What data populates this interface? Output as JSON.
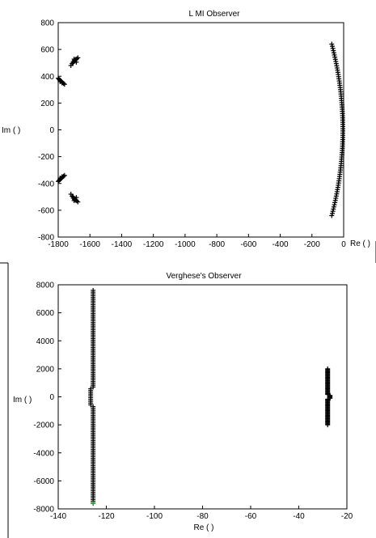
{
  "chart_data": [
    {
      "type": "scatter",
      "title": "L MI Observer",
      "xlabel": "Re ( )",
      "ylabel": "Im ( )",
      "xlim": [
        -1800,
        0
      ],
      "ylim": [
        -800,
        800
      ],
      "xticks": [
        -1800,
        -1600,
        -1400,
        -1200,
        -1000,
        -800,
        -600,
        -400,
        -200,
        0
      ],
      "yticks": [
        -800,
        -600,
        -400,
        -200,
        0,
        200,
        400,
        600,
        800
      ],
      "grid": false,
      "marker": "+",
      "clusters": [
        {
          "x": [
            -1720,
            -1712,
            -1705,
            -1698,
            -1690,
            -1683,
            -1676,
            -1706,
            -1694,
            -1686,
            -1700
          ],
          "y": [
            480,
            495,
            510,
            518,
            525,
            530,
            538,
            500,
            520,
            505,
            528
          ]
        },
        {
          "x": [
            -1800,
            -1795,
            -1790,
            -1784,
            -1778,
            -1772,
            -1766,
            -1760,
            -1788,
            -1776
          ],
          "y": [
            385,
            378,
            372,
            366,
            360,
            352,
            346,
            340,
            360,
            350
          ]
        },
        {
          "x": [
            -1800,
            -1795,
            -1790,
            -1784,
            -1778,
            -1772,
            -1766,
            -1760,
            -1788,
            -1776
          ],
          "y": [
            -385,
            -378,
            -372,
            -366,
            -360,
            -352,
            -346,
            -340,
            -360,
            -350
          ]
        },
        {
          "x": [
            -1720,
            -1712,
            -1705,
            -1698,
            -1690,
            -1683,
            -1676,
            -1706,
            -1694,
            -1686,
            -1700
          ],
          "y": [
            -480,
            -495,
            -510,
            -518,
            -525,
            -530,
            -538,
            -500,
            -520,
            -505,
            -528
          ]
        }
      ],
      "arc": {
        "x_center": -5,
        "x_end": -75,
        "y_extent": 640,
        "points": 80
      }
    },
    {
      "type": "scatter",
      "title": "Verghese's Observer",
      "xlabel": "Re ( )",
      "ylabel": "Im ( )",
      "xlim": [
        -140,
        -20
      ],
      "ylim": [
        -8000,
        8000
      ],
      "xticks": [
        -140,
        -120,
        -100,
        -80,
        -60,
        -40,
        -20
      ],
      "yticks": [
        -8000,
        -6000,
        -4000,
        -2000,
        0,
        2000,
        4000,
        6000,
        8000
      ],
      "grid": false,
      "marker": "+",
      "columns": [
        {
          "x": -125.5,
          "y_min": -7600,
          "y_max": 7600,
          "points": 120,
          "bulge_x": -126.5
        },
        {
          "x": -28,
          "y_min": -2000,
          "y_max": 2000,
          "points": 60,
          "bulge_x": -27
        }
      ],
      "highlight": {
        "x": -125.5,
        "y": -7600,
        "color": "#22aa22"
      }
    }
  ]
}
